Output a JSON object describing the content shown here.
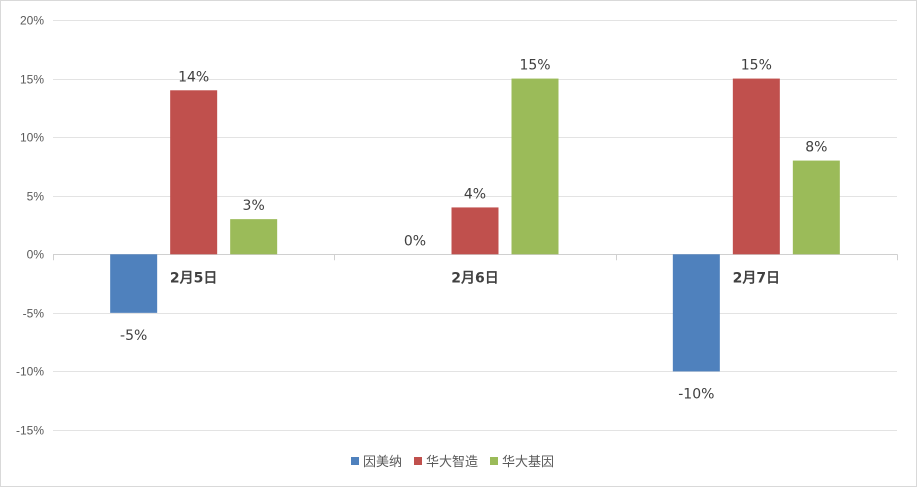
{
  "chart_data": {
    "type": "bar",
    "title": "",
    "xlabel": "",
    "ylabel": "",
    "categories": [
      "2月5日",
      "2月6日",
      "2月7日"
    ],
    "series": [
      {
        "name": "因美纳",
        "color": "#4f81bd",
        "values": [
          -5,
          0,
          -10
        ],
        "labels": [
          "-5%",
          "0%",
          "-10%"
        ]
      },
      {
        "name": "华大智造",
        "color": "#c0504d",
        "values": [
          14,
          4,
          15
        ],
        "labels": [
          "14%",
          "4%",
          "15%"
        ]
      },
      {
        "name": "华大基因",
        "color": "#9bbb59",
        "values": [
          3,
          15,
          8
        ],
        "labels": [
          "3%",
          "15%",
          "8%"
        ]
      }
    ],
    "ylim": [
      -15,
      20
    ],
    "yticks": [
      20,
      15,
      10,
      5,
      0,
      -5,
      -10,
      -15
    ],
    "ytick_labels": [
      "20%",
      "15%",
      "10%",
      "5%",
      "0%",
      "-5%",
      "-10%",
      "-15%"
    ],
    "grid": true,
    "legend_position": "bottom"
  }
}
